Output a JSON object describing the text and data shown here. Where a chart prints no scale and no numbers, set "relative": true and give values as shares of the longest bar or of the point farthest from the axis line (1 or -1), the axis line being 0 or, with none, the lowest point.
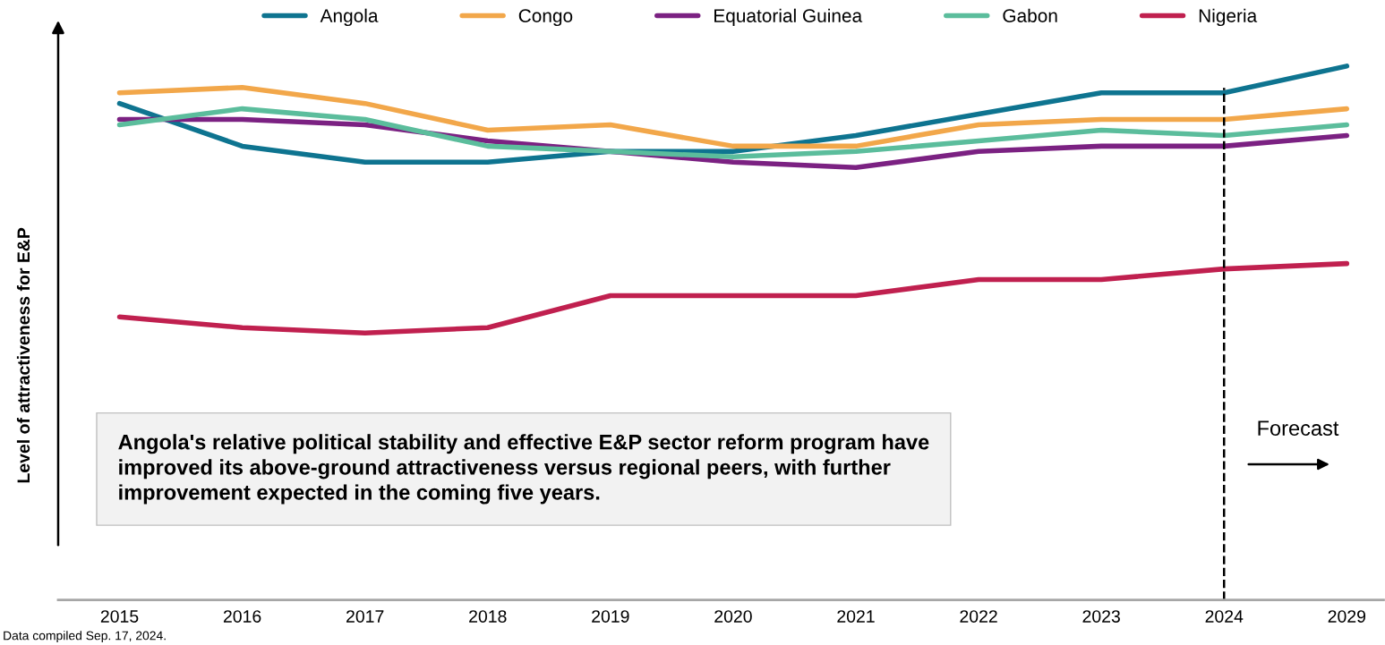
{
  "chart_data": {
    "type": "line",
    "relative": true,
    "ylabel": "Level of attractiveness for E&P",
    "categories": [
      "2015",
      "2016",
      "2017",
      "2018",
      "2019",
      "2020",
      "2021",
      "2022",
      "2023",
      "2024",
      "2029"
    ],
    "series": [
      {
        "name": "Angola",
        "color": "#0e7490",
        "values": [
          0.93,
          0.85,
          0.82,
          0.82,
          0.84,
          0.84,
          0.87,
          0.91,
          0.95,
          0.95,
          1.0
        ]
      },
      {
        "name": "Congo",
        "color": "#f2a74a",
        "values": [
          0.95,
          0.96,
          0.93,
          0.88,
          0.89,
          0.85,
          0.85,
          0.89,
          0.9,
          0.9,
          0.92
        ]
      },
      {
        "name": "Equatorial Guinea",
        "color": "#7b2182",
        "values": [
          0.9,
          0.9,
          0.89,
          0.86,
          0.84,
          0.82,
          0.81,
          0.84,
          0.85,
          0.85,
          0.87
        ]
      },
      {
        "name": "Gabon",
        "color": "#5bbd9c",
        "values": [
          0.89,
          0.92,
          0.9,
          0.85,
          0.84,
          0.83,
          0.84,
          0.86,
          0.88,
          0.87,
          0.89
        ]
      },
      {
        "name": "Nigeria",
        "color": "#c0204f",
        "values": [
          0.53,
          0.51,
          0.5,
          0.51,
          0.57,
          0.57,
          0.57,
          0.6,
          0.6,
          0.62,
          0.63
        ]
      }
    ],
    "ref_lines": [
      {
        "axis": "x",
        "value": "2024",
        "color": "#000000",
        "line_style": "dashed"
      }
    ],
    "annotations": [
      "Angola's relative political stability and effective E&P sector reform program have\nimproved its above-ground attractiveness versus regional peers, with further\nimprovement expected in the coming five years.",
      "Forecast",
      "Data compiled Sep. 17, 2024."
    ],
    "legend": "top",
    "grid": false,
    "marker": "none",
    "line_style": "solid"
  }
}
